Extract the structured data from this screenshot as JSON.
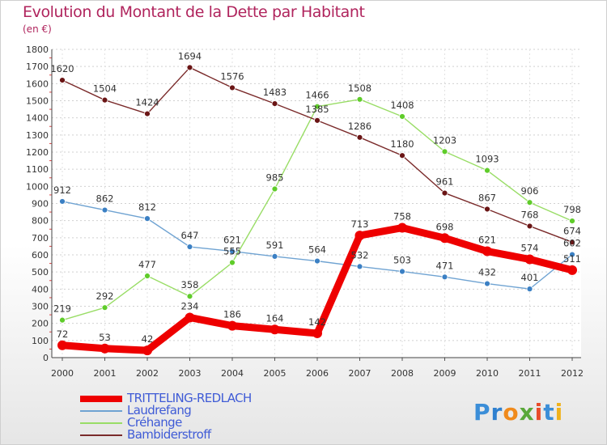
{
  "page": {
    "title": "Evolution du Montant de la Dette par Habitant",
    "subtitle": "(en €)"
  },
  "logo": {
    "letters": [
      "P",
      "r",
      "o",
      "x",
      "i",
      "t",
      "i"
    ],
    "colors": [
      "#3b8ed8",
      "#2f80cf",
      "#f08a1c",
      "#5aa83a",
      "#e84b2a",
      "#3b8ed8",
      "#f0b21c"
    ]
  },
  "chart_data": {
    "type": "line",
    "categories": [
      "2000",
      "2001",
      "2002",
      "2003",
      "2004",
      "2005",
      "2006",
      "2007",
      "2008",
      "2009",
      "2010",
      "2011",
      "2012"
    ],
    "y_ticks": [
      "0",
      "100",
      "200",
      "300",
      "400",
      "500",
      "600",
      "700",
      "800",
      "900",
      "1000",
      "1100",
      "1200",
      "1300",
      "1400",
      "1500",
      "1600",
      "1700",
      "1800"
    ],
    "ylim": [
      0,
      1800
    ],
    "grid": true,
    "legend_position": "bottom-left",
    "series": [
      {
        "name": "TRITTELING-REDLACH",
        "color": "#ee0000",
        "dot_color": "#ee0000",
        "emphasis": true,
        "values": [
          72,
          53,
          42,
          234,
          186,
          164,
          142,
          713,
          758,
          698,
          621,
          574,
          511
        ],
        "labels": [
          "72",
          "53",
          "42",
          "234",
          "186",
          "164",
          "142",
          "713",
          "758",
          "698",
          "621",
          "574",
          "511"
        ]
      },
      {
        "name": "Laudrefang",
        "color": "#6fa3d2",
        "dot_color": "#3b80c4",
        "emphasis": false,
        "values": [
          912,
          862,
          812,
          647,
          621,
          591,
          564,
          532,
          503,
          471,
          432,
          401,
          602
        ],
        "labels": [
          "912",
          "862",
          "812",
          "647",
          "621",
          "591",
          "564",
          "532",
          "503",
          "471",
          "432",
          "401",
          "602"
        ]
      },
      {
        "name": "Créhange",
        "color": "#99dd66",
        "dot_color": "#5fcc2a",
        "emphasis": false,
        "values": [
          219,
          292,
          477,
          358,
          555,
          985,
          1466,
          1508,
          1408,
          1203,
          1093,
          906,
          798
        ],
        "labels": [
          "219",
          "292",
          "477",
          "358",
          "555",
          "985",
          "1466",
          "1508",
          "1408",
          "1203",
          "1093",
          "906",
          "798"
        ]
      },
      {
        "name": "Bambiderstroff",
        "color": "#7a2a2a",
        "dot_color": "#6a1515",
        "emphasis": false,
        "values": [
          1620,
          1504,
          1424,
          1694,
          1576,
          1483,
          1385,
          1286,
          1180,
          961,
          867,
          768,
          674
        ],
        "labels": [
          "1620",
          "1504",
          "1424",
          "1694",
          "1576",
          "1483",
          "1385",
          "1286",
          "1180",
          "961",
          "867",
          "768",
          "674"
        ]
      }
    ]
  }
}
